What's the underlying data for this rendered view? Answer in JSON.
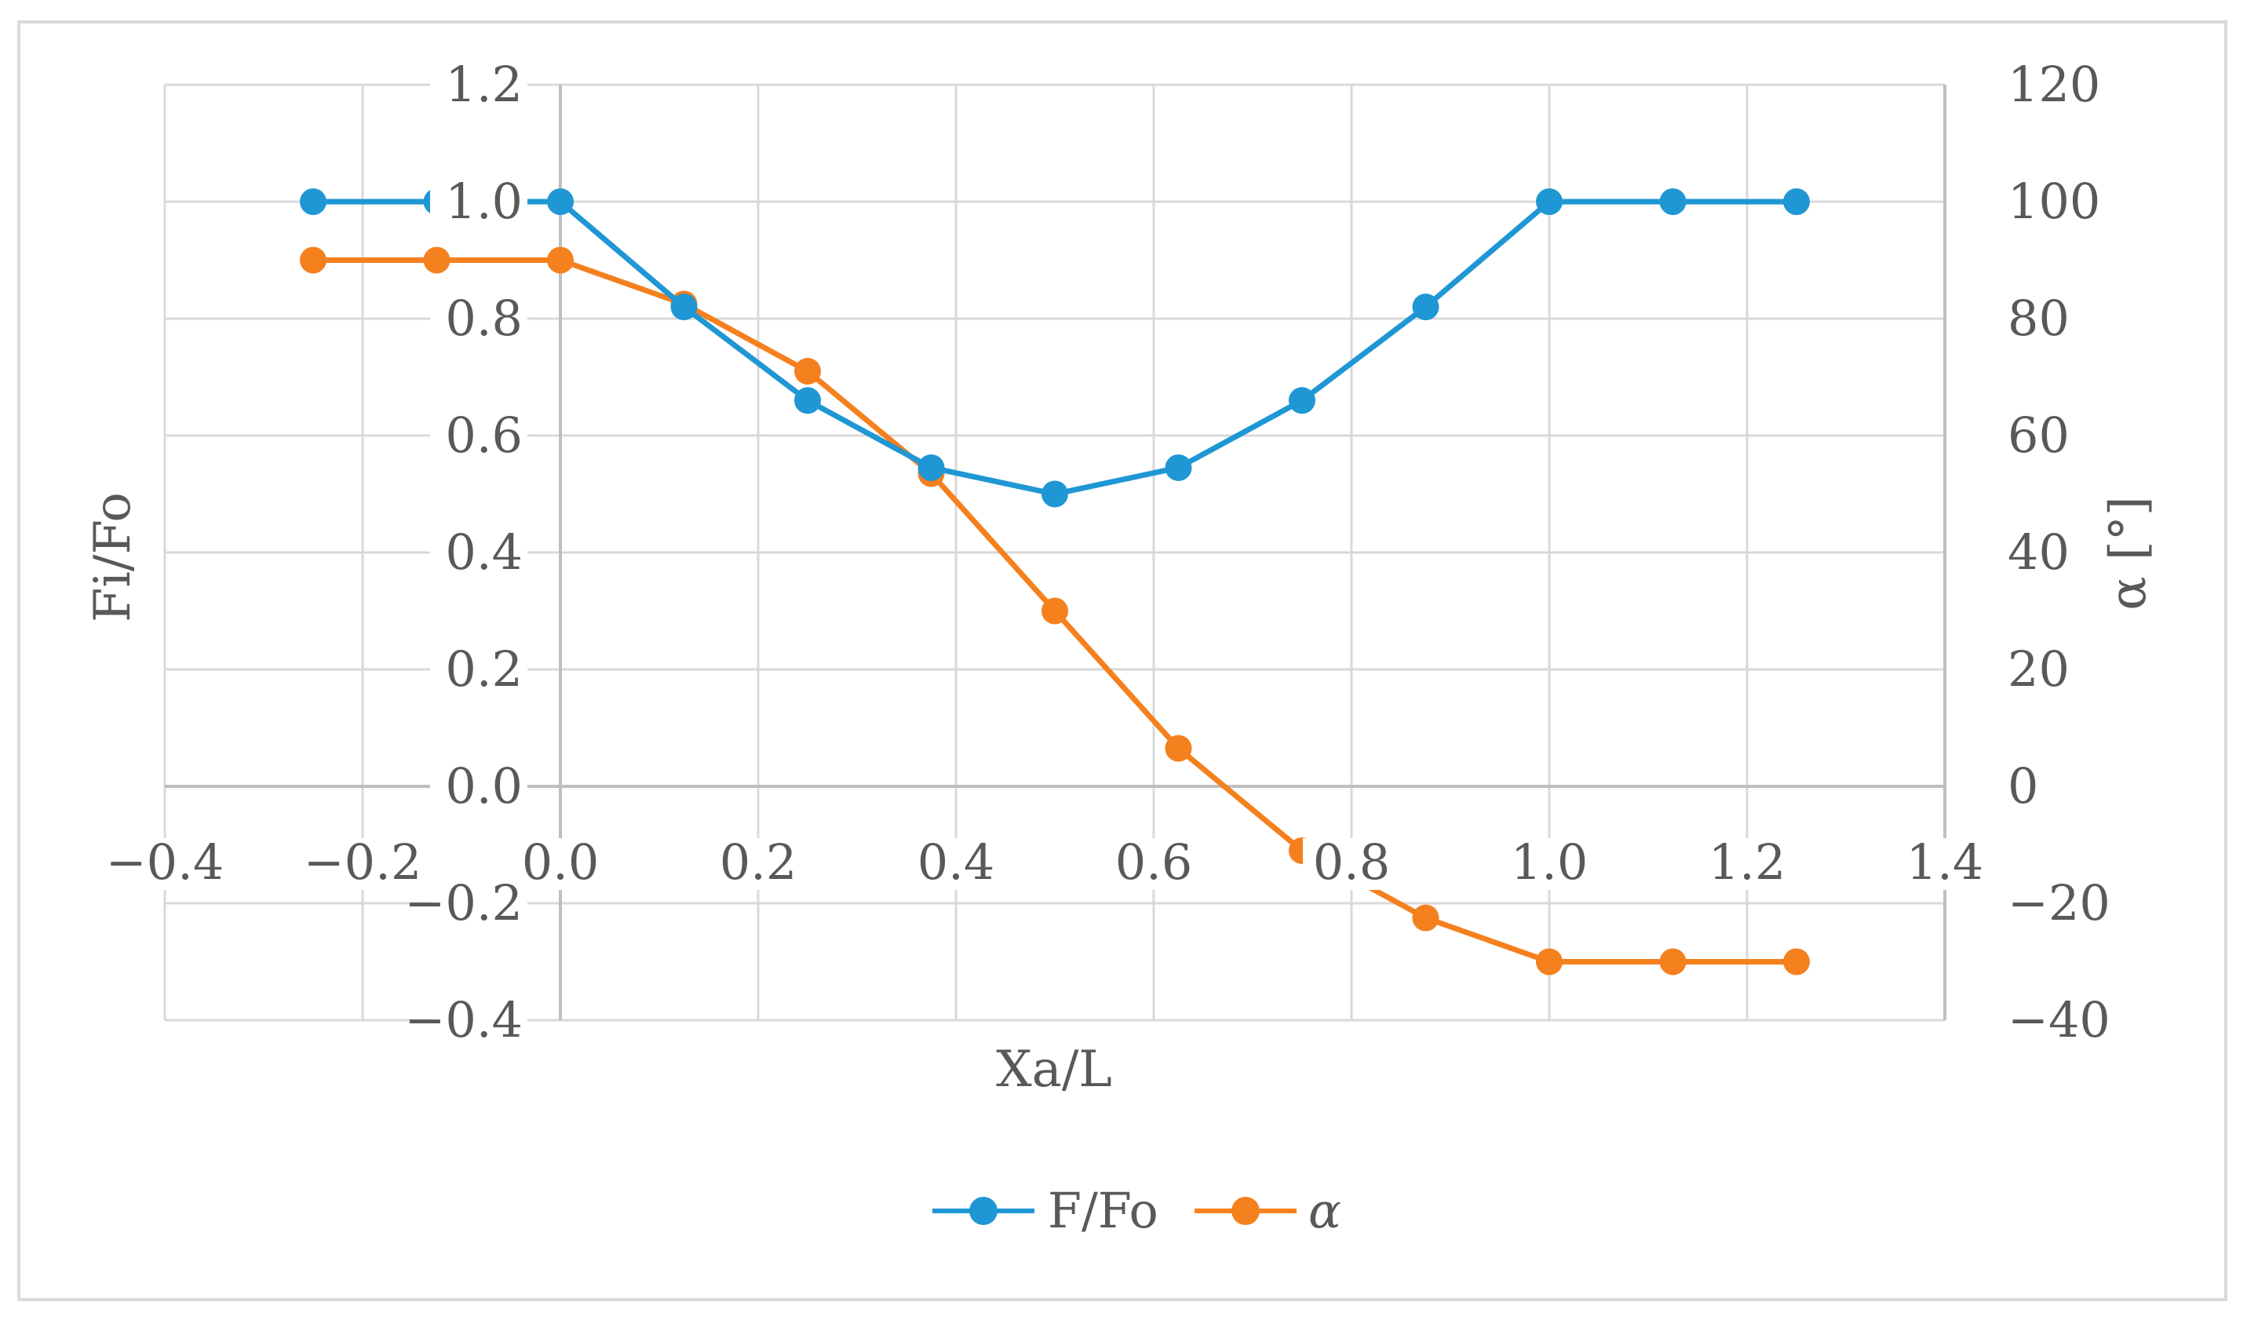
{
  "chart_data": {
    "type": "line",
    "xlabel": "Xa/L",
    "ylabel": "Fi/Fo",
    "y2label": "α [°]",
    "xlim": [
      -0.4,
      1.4
    ],
    "ylim": [
      -0.4,
      1.2
    ],
    "y2lim": [
      -40,
      120
    ],
    "xticks": [
      "−0.4",
      "−0.2",
      "0.0",
      "0.2",
      "0.4",
      "0.6",
      "0.8",
      "1.0",
      "1.2",
      "1.4"
    ],
    "yticks": [
      "−0.4",
      "−0.2",
      "0.0",
      "0.2",
      "0.4",
      "0.6",
      "0.8",
      "1.0",
      "1.2"
    ],
    "y2ticks": [
      "−40",
      "−20",
      "0",
      "20",
      "40",
      "60",
      "80",
      "100",
      "120"
    ],
    "grid": true,
    "legend_position": "bottom",
    "series": [
      {
        "name": "F/Fo",
        "axis": "left",
        "color": "#1f97d4",
        "x": [
          -0.25,
          -0.125,
          0.0,
          0.125,
          0.25,
          0.375,
          0.5,
          0.625,
          0.75,
          0.875,
          1.0,
          1.125,
          1.25
        ],
        "y": [
          1.0,
          1.0,
          1.0,
          0.82,
          0.66,
          0.545,
          0.5,
          0.545,
          0.66,
          0.82,
          1.0,
          1.0,
          1.0
        ]
      },
      {
        "name": "α",
        "axis": "right",
        "color": "#f5801e",
        "x": [
          -0.25,
          -0.125,
          0.0,
          0.125,
          0.25,
          0.375,
          0.5,
          0.625,
          0.75,
          0.875,
          1.0,
          1.125,
          1.25
        ],
        "y": [
          90,
          90,
          90,
          82.5,
          71,
          53.5,
          30,
          6.5,
          -11,
          -22.5,
          -30,
          -30,
          -30
        ]
      }
    ]
  }
}
